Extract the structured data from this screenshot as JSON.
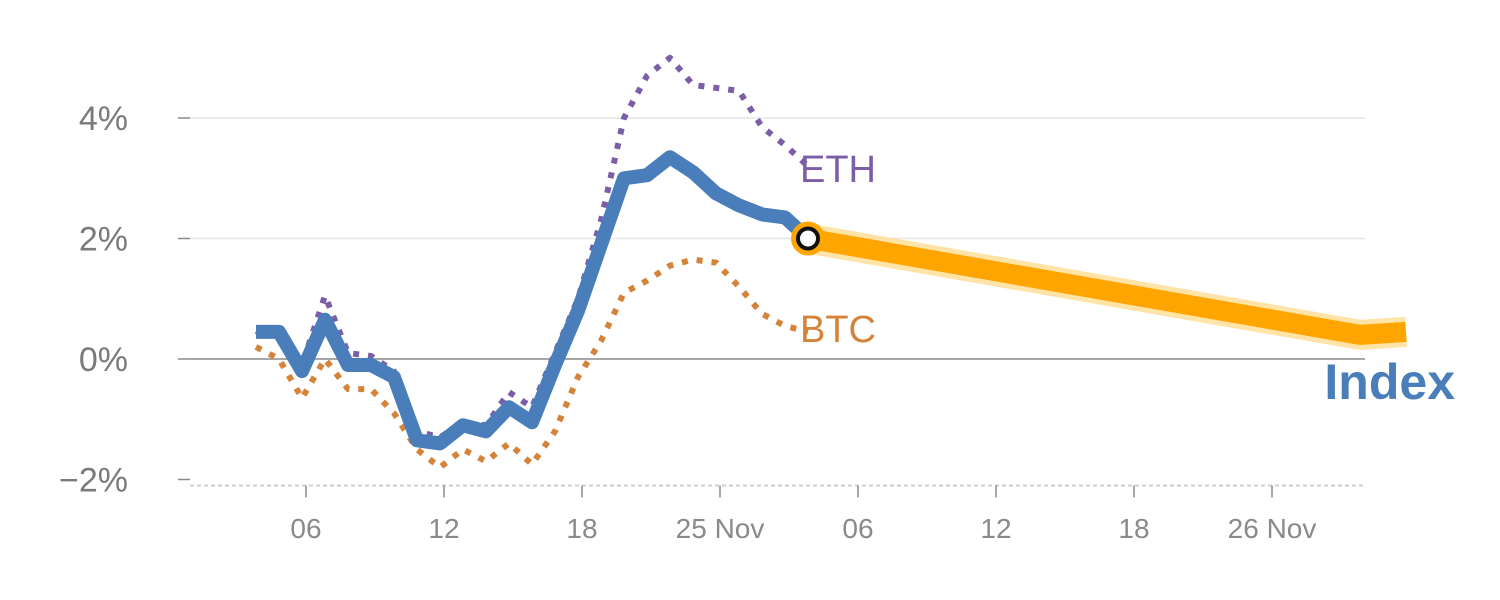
{
  "chart_data": {
    "type": "line",
    "title": "",
    "xlabel": "",
    "ylabel": "",
    "x_tick_labels": [
      "06",
      "12",
      "18",
      "25 Nov",
      "06",
      "12",
      "18",
      "26 Nov"
    ],
    "y_tick_labels": [
      "4%",
      "2%",
      "0%",
      "−2%"
    ],
    "y_ticks": [
      4,
      2,
      0,
      -2
    ],
    "ylim": [
      -2.1,
      5.0
    ],
    "xlim": [
      0,
      52
    ],
    "grid": "horizontal",
    "colors": {
      "Index": "#4a7ebb",
      "ETH": "#7b5ea7",
      "BTC": "#d6833a",
      "forecast": "#ffa500",
      "forecast_halo": "#ffd98a"
    },
    "series": [
      {
        "name": "Index",
        "style": "solid",
        "x": [
          2,
          3,
          4,
          5,
          6,
          7,
          8,
          9,
          10,
          11,
          12,
          13,
          14,
          15,
          16,
          17,
          18,
          19,
          20,
          21,
          22,
          23,
          24,
          25,
          26
        ],
        "y": [
          0.45,
          0.45,
          -0.2,
          0.65,
          -0.1,
          -0.1,
          -0.3,
          -1.35,
          -1.4,
          -1.1,
          -1.2,
          -0.8,
          -1.05,
          -0.1,
          0.8,
          1.9,
          3.0,
          3.05,
          3.35,
          3.1,
          2.75,
          2.55,
          2.4,
          2.35,
          2.0
        ]
      },
      {
        "name": "ETH",
        "style": "dotted",
        "x": [
          2,
          3,
          4,
          5,
          6,
          7,
          8,
          9,
          10,
          11,
          12,
          13,
          14,
          15,
          16,
          17,
          18,
          19,
          20,
          21,
          22,
          23,
          24,
          25,
          26
        ],
        "y": [
          0.4,
          0.55,
          -0.1,
          1.05,
          0.1,
          0.05,
          -0.2,
          -1.2,
          -1.3,
          -1.05,
          -1.1,
          -0.55,
          -0.8,
          0.1,
          1.0,
          2.3,
          4.0,
          4.7,
          5.0,
          4.55,
          4.5,
          4.45,
          3.85,
          3.55,
          3.2
        ]
      },
      {
        "name": "BTC",
        "style": "dotted",
        "x": [
          2,
          3,
          4,
          5,
          6,
          7,
          8,
          9,
          10,
          11,
          12,
          13,
          14,
          15,
          16,
          17,
          18,
          19,
          20,
          21,
          22,
          23,
          24,
          25,
          26
        ],
        "y": [
          0.2,
          0.0,
          -0.65,
          0.0,
          -0.5,
          -0.5,
          -0.9,
          -1.5,
          -1.8,
          -1.5,
          -1.7,
          -1.4,
          -1.75,
          -1.2,
          -0.3,
          0.3,
          1.1,
          1.3,
          1.55,
          1.65,
          1.6,
          1.2,
          0.75,
          0.55,
          0.45
        ]
      },
      {
        "name": "forecast",
        "style": "thick",
        "x": [
          26,
          50,
          52
        ],
        "y": [
          2.0,
          0.4,
          0.45
        ]
      }
    ],
    "marker": {
      "x": 26,
      "y": 2.0
    },
    "annotations": [
      {
        "text": "ETH",
        "x": 26,
        "y": 3.15
      },
      {
        "text": "BTC",
        "x": 26,
        "y": 0.5
      },
      {
        "text": "Index",
        "x": 52.2,
        "y": -0.45
      }
    ]
  }
}
